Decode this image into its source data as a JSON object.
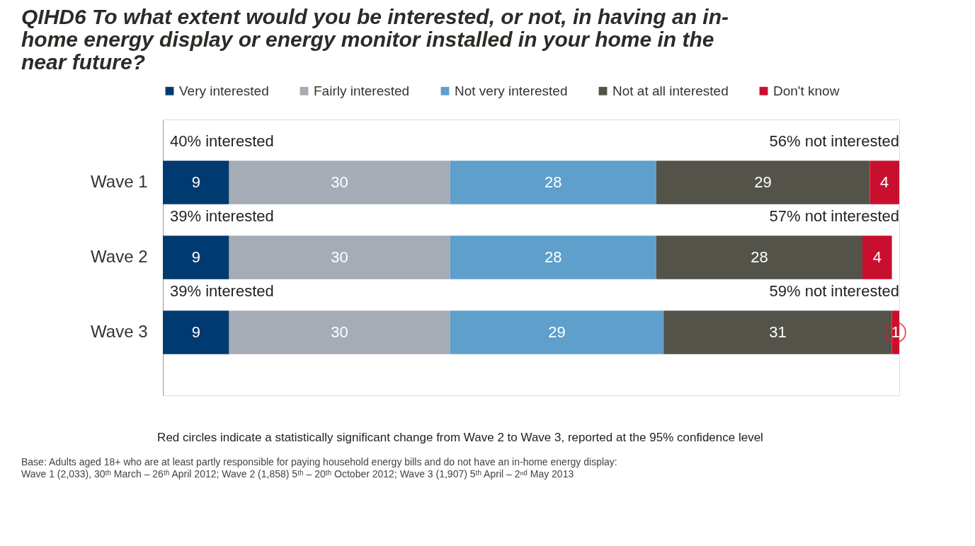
{
  "chart_data": {
    "type": "bar",
    "orientation": "horizontal",
    "stacked": true,
    "data_labels": true,
    "legend": "top",
    "grid": false,
    "title": "QIHD6 To what extent would you be interested, or not, in having an in-home energy display or energy monitor installed in your home in the near future?",
    "categories": [
      "Wave 1",
      "Wave 2",
      "Wave 3"
    ],
    "series": [
      {
        "name": "Very interested",
        "color": "#003a70",
        "values": [
          9,
          9,
          9
        ]
      },
      {
        "name": "Fairly interested",
        "color": "#a5acb5",
        "values": [
          30,
          30,
          30
        ]
      },
      {
        "name": "Not very interested",
        "color": "#5f9fcb",
        "values": [
          28,
          28,
          29
        ]
      },
      {
        "name": "Not at all interested",
        "color": "#54534a",
        "values": [
          29,
          28,
          31
        ]
      },
      {
        "name": "Don't know",
        "color": "#c8102e",
        "values": [
          4,
          4,
          1
        ]
      },
      {
        "type": "scatter",
        "marker": "circle",
        "color": "#e8101e",
        "values": [
          null,
          null,
          99.5
        ],
        "value_labels": [
          null,
          null,
          null
        ]
      }
    ],
    "annotations": [
      "40% interested",
      "56% not interested",
      "39% interested",
      "57% not interested",
      "39% interested",
      "59% not interested",
      "Red circles indicate a statistically significant change from Wave 2 to Wave 3, reported at the 95% confidence level",
      "Base:  Adults aged 18+ who are at least partly responsible for paying household energy bills and do not have an in-home energy display:",
      "Wave 1 (2,033), 30ᵗʰ March – 26ᵗʰ April 2012; Wave 2 (1,858)  5ᵗʰ – 20ᵗʰ October 2012; Wave 3 (1,907) 5ᵗʰ April – 2ⁿᵈ May 2013"
    ]
  }
}
